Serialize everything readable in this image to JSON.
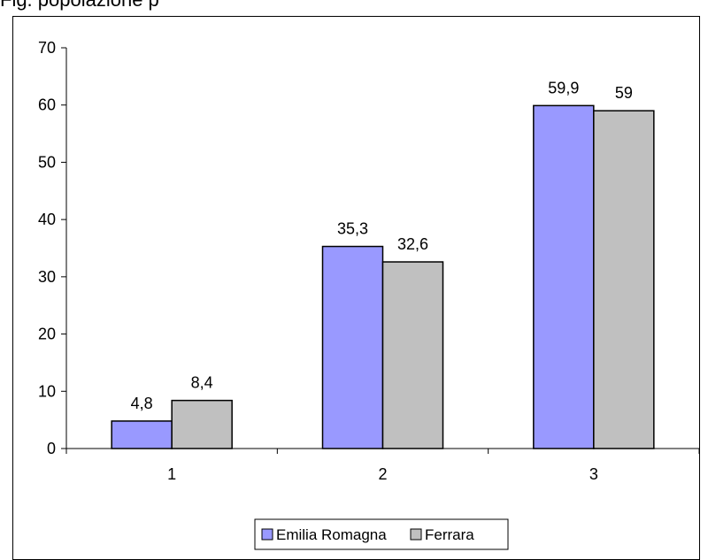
{
  "title_fragment": "Fig.                                                              popolazione                      p",
  "chart_data": {
    "type": "bar",
    "categories": [
      "1",
      "2",
      "3"
    ],
    "series": [
      {
        "name": "Emilia Romagna",
        "values": [
          4.8,
          35.3,
          59.9
        ],
        "labels": [
          "4,8",
          "35,3",
          "59,9"
        ],
        "color": "#9999FF"
      },
      {
        "name": "Ferrara",
        "values": [
          8.4,
          32.6,
          59
        ],
        "labels": [
          "8,4",
          "32,6",
          "59"
        ],
        "color": "#C0C0C0"
      }
    ],
    "yticks": [
      "0",
      "10",
      "20",
      "30",
      "40",
      "50",
      "60",
      "70"
    ],
    "ylim": [
      0,
      70
    ],
    "grid": false,
    "legend_position": "bottom"
  }
}
